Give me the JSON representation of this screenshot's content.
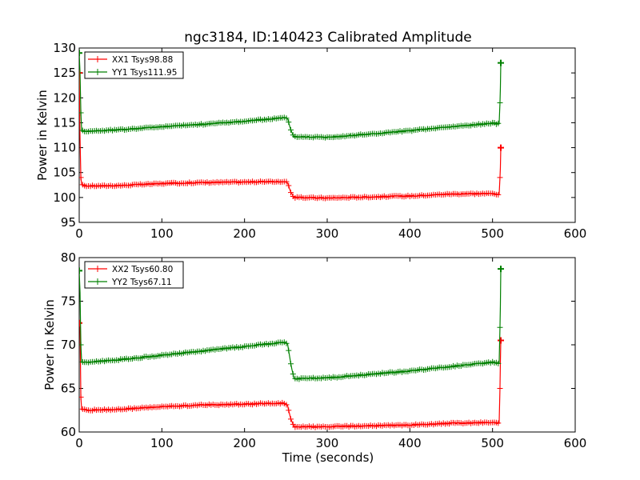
{
  "title": "ngc3184, ID:140423 Calibrated Amplitude",
  "chart_data": [
    {
      "type": "line",
      "ylabel": "Power in Kelvin",
      "xlabel": "",
      "xlim": [
        0,
        600
      ],
      "ylim": [
        95,
        130
      ],
      "xticks": [
        0,
        100,
        200,
        300,
        400,
        500,
        600
      ],
      "yticks": [
        95,
        100,
        105,
        110,
        115,
        120,
        125,
        130
      ],
      "legend_position": "top-left",
      "series": [
        {
          "name": "XX1 Tsys98.88",
          "color": "#ff0000",
          "points": [
            [
              0,
              125
            ],
            [
              1,
              112
            ],
            [
              2,
              104
            ],
            [
              3,
              102.5
            ],
            [
              10,
              102.3
            ],
            [
              50,
              102.4
            ],
            [
              100,
              102.8
            ],
            [
              150,
              103.0
            ],
            [
              200,
              103.1
            ],
            [
              248,
              103.2
            ],
            [
              252,
              103.0
            ],
            [
              256,
              101.0
            ],
            [
              260,
              100.0
            ],
            [
              300,
              99.9
            ],
            [
              350,
              100.1
            ],
            [
              400,
              100.3
            ],
            [
              450,
              100.7
            ],
            [
              500,
              100.8
            ],
            [
              508,
              100.6
            ],
            [
              509,
              104
            ],
            [
              509.5,
              106
            ],
            [
              510,
              110
            ]
          ]
        },
        {
          "name": "YY1 Tsys111.95",
          "color": "#008000",
          "points": [
            [
              0,
              129
            ],
            [
              1,
              125
            ],
            [
              2,
              117
            ],
            [
              3,
              113.4
            ],
            [
              10,
              113.3
            ],
            [
              50,
              113.6
            ],
            [
              100,
              114.2
            ],
            [
              150,
              114.7
            ],
            [
              200,
              115.3
            ],
            [
              248,
              116.0
            ],
            [
              252,
              115.8
            ],
            [
              256,
              113.5
            ],
            [
              260,
              112.2
            ],
            [
              300,
              112.1
            ],
            [
              350,
              112.7
            ],
            [
              400,
              113.4
            ],
            [
              450,
              114.2
            ],
            [
              500,
              114.9
            ],
            [
              508,
              114.8
            ],
            [
              509,
              119
            ],
            [
              509.5,
              122
            ],
            [
              510,
              127
            ]
          ]
        }
      ]
    },
    {
      "type": "line",
      "ylabel": "Power in Kelvin",
      "xlabel": "Time (seconds)",
      "xlim": [
        0,
        600
      ],
      "ylim": [
        60,
        80
      ],
      "xticks": [
        0,
        100,
        200,
        300,
        400,
        500,
        600
      ],
      "yticks": [
        60,
        65,
        70,
        75,
        80
      ],
      "legend_position": "top-left",
      "series": [
        {
          "name": "XX2 Tsys60.80",
          "color": "#ff0000",
          "points": [
            [
              0,
              72.5
            ],
            [
              1,
              72
            ],
            [
              2,
              64
            ],
            [
              3,
              62.6
            ],
            [
              10,
              62.5
            ],
            [
              50,
              62.6
            ],
            [
              100,
              62.9
            ],
            [
              150,
              63.1
            ],
            [
              200,
              63.2
            ],
            [
              248,
              63.3
            ],
            [
              252,
              63.0
            ],
            [
              256,
              61.5
            ],
            [
              260,
              60.6
            ],
            [
              300,
              60.6
            ],
            [
              350,
              60.7
            ],
            [
              400,
              60.8
            ],
            [
              450,
              61.0
            ],
            [
              500,
              61.1
            ],
            [
              508,
              61.0
            ],
            [
              509,
              65
            ],
            [
              509.5,
              68
            ],
            [
              510,
              70.5
            ]
          ]
        },
        {
          "name": "YY2 Tsys67.11",
          "color": "#008000",
          "points": [
            [
              0,
              78.5
            ],
            [
              1,
              76
            ],
            [
              2,
              70
            ],
            [
              3,
              68.0
            ],
            [
              10,
              68.0
            ],
            [
              50,
              68.3
            ],
            [
              100,
              68.8
            ],
            [
              150,
              69.3
            ],
            [
              200,
              69.8
            ],
            [
              248,
              70.3
            ],
            [
              252,
              70.1
            ],
            [
              256,
              67.8
            ],
            [
              260,
              66.1
            ],
            [
              300,
              66.2
            ],
            [
              350,
              66.6
            ],
            [
              400,
              67.0
            ],
            [
              450,
              67.5
            ],
            [
              500,
              68.0
            ],
            [
              508,
              67.9
            ],
            [
              509,
              72
            ],
            [
              509.5,
              74.5
            ],
            [
              510,
              78.7
            ]
          ]
        }
      ]
    }
  ]
}
